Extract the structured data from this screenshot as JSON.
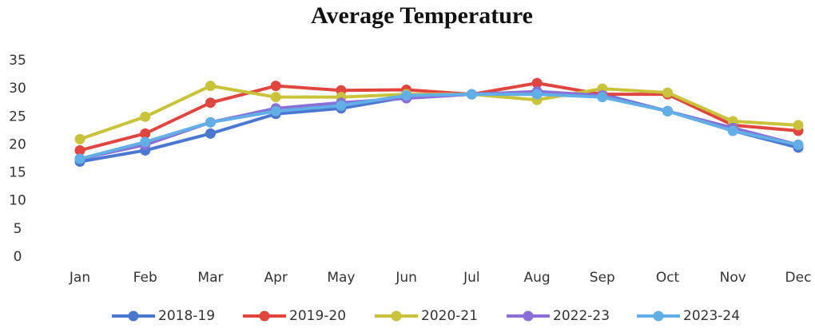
{
  "chart_data": {
    "type": "line",
    "title": "Average Temperature",
    "categories": [
      "Jan",
      "Feb",
      "Mar",
      "Apr",
      "May",
      "Jun",
      "Jul",
      "Aug",
      "Sep",
      "Oct",
      "Nov",
      "Dec"
    ],
    "series": [
      {
        "name": "2018-19",
        "color": "#4a78d0",
        "values": [
          17,
          19,
          22,
          25.5,
          26.5,
          28.5,
          29,
          29,
          29,
          26,
          22.5,
          19.5
        ]
      },
      {
        "name": "2019-20",
        "color": "#e0463f",
        "values": [
          19,
          22,
          27.5,
          30.5,
          29.7,
          29.8,
          29,
          31,
          29,
          29,
          23.5,
          22.5
        ]
      },
      {
        "name": "2020-21",
        "color": "#c9c33c",
        "values": [
          21,
          25,
          30.5,
          28.5,
          28.5,
          29,
          29,
          28,
          30,
          29.3,
          24.2,
          23.5
        ]
      },
      {
        "name": "2022-23",
        "color": "#8a6fd6",
        "values": [
          17.5,
          20,
          24,
          26.5,
          27.5,
          28.3,
          29,
          29.5,
          28.8,
          26,
          23,
          20
        ]
      },
      {
        "name": "2023-24",
        "color": "#62aee6",
        "values": [
          17.5,
          20.5,
          24,
          26,
          27,
          28.8,
          29,
          29,
          28.5,
          26,
          22.5,
          20
        ]
      }
    ],
    "ylim": [
      0,
      35
    ],
    "yticks": [
      0,
      5,
      10,
      15,
      20,
      25,
      30,
      35
    ],
    "grid": false,
    "legend": "bottom"
  }
}
